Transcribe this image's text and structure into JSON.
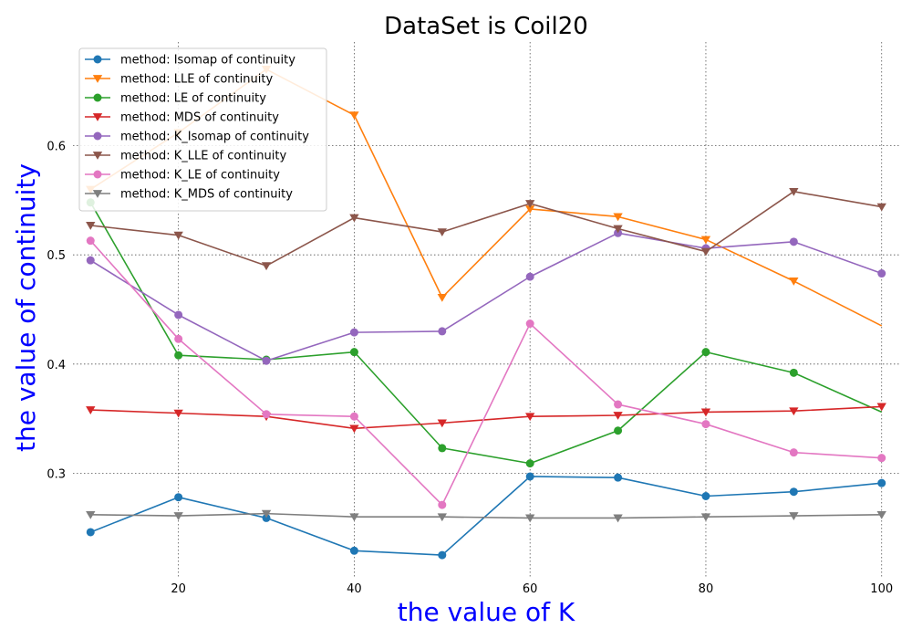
{
  "chart_data": {
    "type": "line",
    "title": "DataSet is Coil20",
    "xlabel": "the value of K",
    "ylabel": "the value of continuity",
    "xlim": [
      8,
      102
    ],
    "ylim": [
      0.205,
      0.695
    ],
    "xticks": [
      20,
      40,
      60,
      80,
      100
    ],
    "yticks": [
      0.3,
      0.4,
      0.5,
      0.6
    ],
    "xtick_labels": [
      "20",
      "40",
      "60",
      "80",
      "100"
    ],
    "ytick_labels": [
      "0.3",
      "0.4",
      "0.5",
      "0.6"
    ],
    "grid": true,
    "legend_position": "top-left",
    "x": [
      10,
      20,
      30,
      40,
      50,
      60,
      70,
      80,
      90,
      100
    ],
    "series": [
      {
        "name": "method: Isomap of continuity",
        "color": "#1f77b4",
        "marker": "circle",
        "values": [
          0.246,
          0.278,
          0.259,
          0.229,
          0.225,
          0.297,
          0.296,
          0.279,
          0.283,
          0.291
        ]
      },
      {
        "name": "method: LLE of continuity",
        "color": "#ff7f0e",
        "marker": "triangle-down",
        "values": [
          0.56,
          0.612,
          0.67,
          0.628,
          0.461,
          0.542,
          0.535,
          0.514,
          0.476,
          0.435
        ]
      },
      {
        "name": "method: LE of continuity",
        "color": "#2ca02c",
        "marker": "circle",
        "values": [
          0.548,
          0.408,
          0.404,
          0.411,
          0.323,
          0.309,
          0.339,
          0.411,
          0.392,
          0.356
        ]
      },
      {
        "name": "method: MDS of continuity",
        "color": "#d62728",
        "marker": "triangle-down",
        "values": [
          0.358,
          0.355,
          0.352,
          0.341,
          0.346,
          0.352,
          0.353,
          0.356,
          0.357,
          0.361
        ]
      },
      {
        "name": "method: K_Isomap of continuity",
        "color": "#9467bd",
        "marker": "circle",
        "values": [
          0.495,
          0.445,
          0.403,
          0.429,
          0.43,
          0.48,
          0.52,
          0.506,
          0.512,
          0.483
        ]
      },
      {
        "name": "method: K_LLE of continuity",
        "color": "#8c564b",
        "marker": "triangle-down",
        "values": [
          0.527,
          0.518,
          0.49,
          0.534,
          0.521,
          0.547,
          0.524,
          0.503,
          0.558,
          0.544
        ]
      },
      {
        "name": "method: K_LE of continuity",
        "color": "#e377c2",
        "marker": "circle",
        "values": [
          0.513,
          0.423,
          0.354,
          0.352,
          0.271,
          0.437,
          0.363,
          0.345,
          0.319,
          0.314
        ]
      },
      {
        "name": "method: K_MDS of continuity",
        "color": "#7f7f7f",
        "marker": "triangle-down",
        "values": [
          0.262,
          0.261,
          0.263,
          0.26,
          0.26,
          0.259,
          0.259,
          0.26,
          0.261,
          0.262
        ]
      }
    ]
  }
}
